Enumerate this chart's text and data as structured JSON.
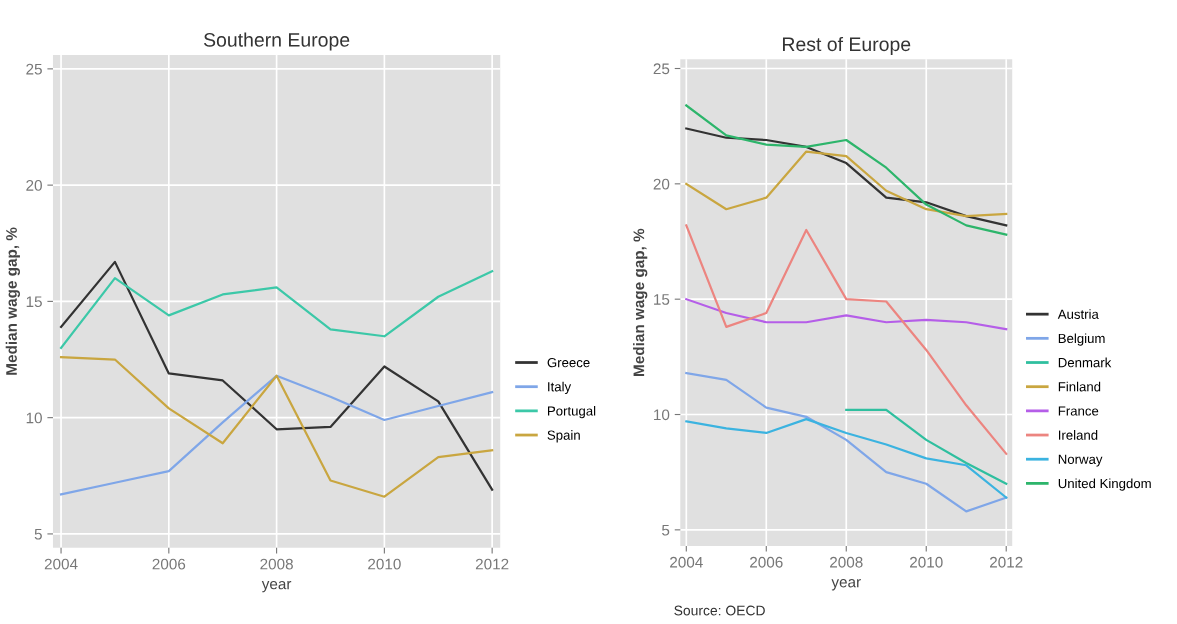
{
  "chart_data": [
    {
      "type": "line",
      "title": "Southern Europe",
      "xlabel": "year",
      "ylabel": "Median wage gap, %",
      "x": [
        2004,
        2005,
        2006,
        2007,
        2008,
        2009,
        2010,
        2011,
        2012
      ],
      "xlim": [
        2003.85,
        2012.15
      ],
      "xticks": [
        2004,
        2006,
        2008,
        2010,
        2012
      ],
      "ylim": [
        4.4,
        25.6
      ],
      "yticks": [
        5,
        10,
        15,
        20,
        25
      ],
      "grid": true,
      "legend": "right",
      "series": [
        {
          "name": "Greece",
          "color": "#333333",
          "values": [
            13.9,
            16.7,
            11.9,
            11.6,
            9.5,
            9.6,
            12.2,
            10.7,
            6.9
          ]
        },
        {
          "name": "Italy",
          "color": "#7fa6e8",
          "values": [
            6.7,
            7.2,
            7.7,
            9.8,
            11.8,
            10.9,
            9.9,
            10.5,
            11.1
          ]
        },
        {
          "name": "Portugal",
          "color": "#3cc8a8",
          "values": [
            13.0,
            16.0,
            14.4,
            15.3,
            15.6,
            13.8,
            13.5,
            15.2,
            16.3
          ]
        },
        {
          "name": "Spain",
          "color": "#c9a640",
          "values": [
            12.6,
            12.5,
            10.4,
            8.9,
            11.8,
            7.3,
            6.6,
            8.3,
            8.6
          ]
        }
      ]
    },
    {
      "type": "line",
      "title": "Rest of Europe",
      "xlabel": "year",
      "ylabel": "Median wage gap, %",
      "x": [
        2004,
        2005,
        2006,
        2007,
        2008,
        2009,
        2010,
        2011,
        2012
      ],
      "xlim": [
        2003.85,
        2012.15
      ],
      "xticks": [
        2004,
        2006,
        2008,
        2010,
        2012
      ],
      "ylim": [
        4.3,
        25.4
      ],
      "yticks": [
        5,
        10,
        15,
        20,
        25
      ],
      "grid": true,
      "legend": "right",
      "annotations": [
        "Source: OECD"
      ],
      "series": [
        {
          "name": "Austria",
          "color": "#333333",
          "values": [
            22.4,
            22.0,
            21.9,
            21.6,
            20.9,
            19.4,
            19.2,
            18.6,
            18.2
          ]
        },
        {
          "name": "Belgium",
          "color": "#7fa6e8",
          "values": [
            11.8,
            11.5,
            10.3,
            9.9,
            8.9,
            7.5,
            7.0,
            5.8,
            6.4
          ]
        },
        {
          "name": "Denmark",
          "color": "#2fbf9f",
          "values": [
            null,
            null,
            null,
            null,
            10.2,
            10.2,
            8.9,
            7.9,
            7.0
          ]
        },
        {
          "name": "Finland",
          "color": "#c9a640",
          "values": [
            20.0,
            18.9,
            19.4,
            21.4,
            21.2,
            19.7,
            18.9,
            18.6,
            18.7
          ]
        },
        {
          "name": "France",
          "color": "#b55ee8",
          "values": [
            15.0,
            14.4,
            14.0,
            14.0,
            14.3,
            14.0,
            14.1,
            14.0,
            13.7
          ]
        },
        {
          "name": "Ireland",
          "color": "#ec8580",
          "values": [
            18.2,
            13.8,
            14.4,
            18.0,
            15.0,
            14.9,
            12.8,
            10.4,
            8.3
          ]
        },
        {
          "name": "Norway",
          "color": "#3bb3e0",
          "values": [
            9.7,
            9.4,
            9.2,
            9.8,
            9.2,
            8.7,
            8.1,
            7.8,
            6.4
          ]
        },
        {
          "name": "United Kingdom",
          "color": "#2db56b",
          "values": [
            23.4,
            22.1,
            21.7,
            21.6,
            21.9,
            20.7,
            19.1,
            18.2,
            17.8
          ]
        }
      ]
    }
  ]
}
